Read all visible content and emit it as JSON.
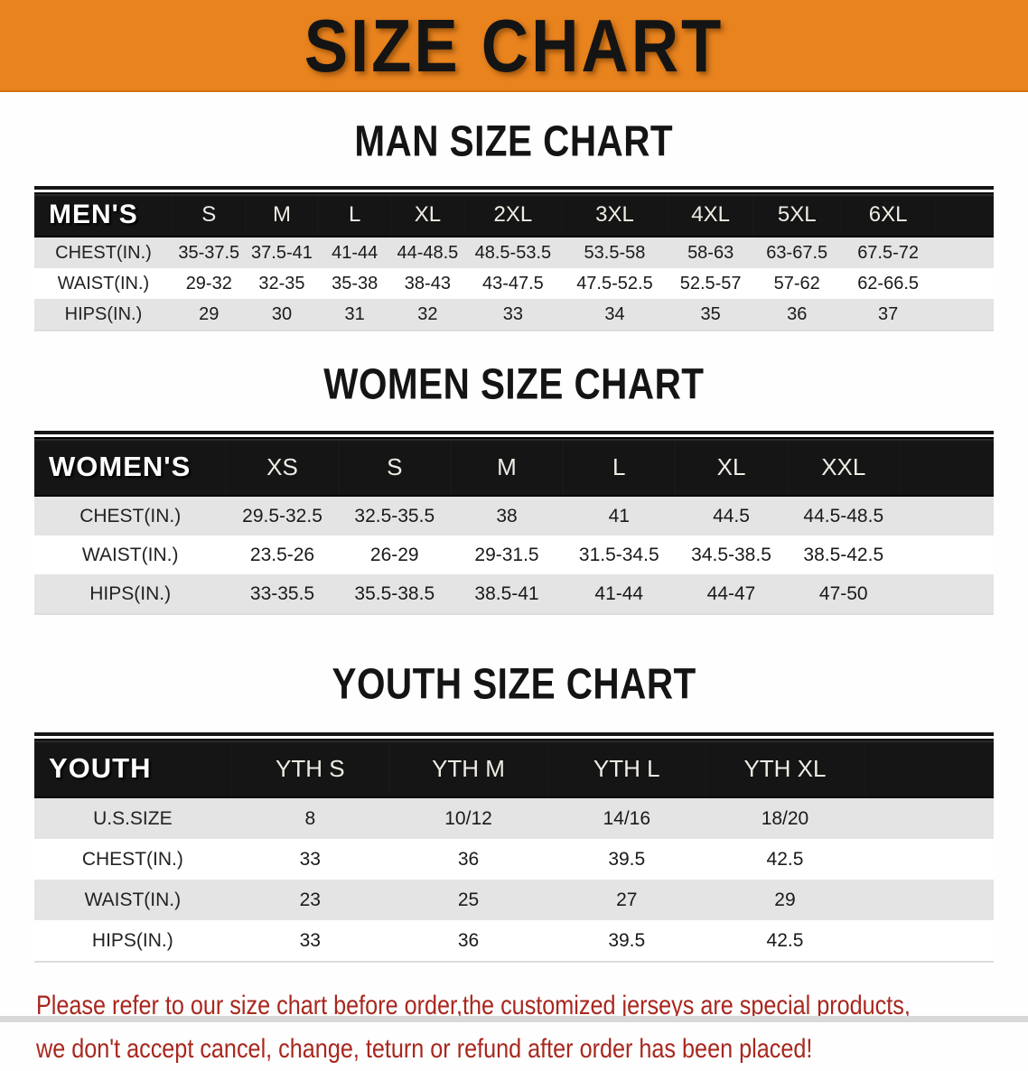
{
  "banner": {
    "title": "SIZE CHART",
    "background_color": "#E8831E",
    "text_color": "#141414"
  },
  "sections": [
    {
      "heading": "MAN SIZE CHART",
      "corner": "MEN'S",
      "columns": [
        "S",
        "M",
        "L",
        "XL",
        "2XL",
        "3XL",
        "4XL",
        "5XL",
        "6XL"
      ],
      "rows": [
        {
          "label": "CHEST(IN.)",
          "values": [
            "35-37.5",
            "37.5-41",
            "41-44",
            "44-48.5",
            "48.5-53.5",
            "53.5-58",
            "58-63",
            "63-67.5",
            "67.5-72"
          ]
        },
        {
          "label": "WAIST(IN.)",
          "values": [
            "29-32",
            "32-35",
            "35-38",
            "38-43",
            "43-47.5",
            "47.5-52.5",
            "52.5-57",
            "57-62",
            "62-66.5"
          ]
        },
        {
          "label": "HIPS(IN.)",
          "values": [
            "29",
            "30",
            "31",
            "32",
            "33",
            "34",
            "35",
            "36",
            "37"
          ]
        }
      ]
    },
    {
      "heading": "WOMEN SIZE CHART",
      "corner": "WOMEN'S",
      "columns": [
        "XS",
        "S",
        "M",
        "L",
        "XL",
        "XXL"
      ],
      "rows": [
        {
          "label": "CHEST(IN.)",
          "values": [
            "29.5-32.5",
            "32.5-35.5",
            "38",
            "41",
            "44.5",
            "44.5-48.5"
          ]
        },
        {
          "label": "WAIST(IN.)",
          "values": [
            "23.5-26",
            "26-29",
            "29-31.5",
            "31.5-34.5",
            "34.5-38.5",
            "38.5-42.5"
          ]
        },
        {
          "label": "HIPS(IN.)",
          "values": [
            "33-35.5",
            "35.5-38.5",
            "38.5-41",
            "41-44",
            "44-47",
            "47-50"
          ]
        }
      ]
    },
    {
      "heading": "YOUTH SIZE CHART",
      "corner": "YOUTH",
      "columns": [
        "YTH S",
        "YTH M",
        "YTH L",
        "YTH XL"
      ],
      "rows": [
        {
          "label": "U.S.SIZE",
          "values": [
            "8",
            "10/12",
            "14/16",
            "18/20"
          ]
        },
        {
          "label": "CHEST(IN.)",
          "values": [
            "33",
            "36",
            "39.5",
            "42.5"
          ]
        },
        {
          "label": "WAIST(IN.)",
          "values": [
            "23",
            "25",
            "27",
            "29"
          ]
        },
        {
          "label": "HIPS(IN.)",
          "values": [
            "33",
            "36",
            "39.5",
            "42.5"
          ]
        }
      ]
    }
  ],
  "disclaimer": {
    "line1": "Please refer to our size chart before order,the customized jerseys are special products,",
    "line2": "we don't accept cancel, change, teturn or refund after order has been placed!",
    "text_color": "#A8271E"
  },
  "colors": {
    "banner_orange": "#E8831E",
    "header_bar_black": "#151515",
    "row_gray": "#E4E4E4",
    "row_white": "#FFFFFF",
    "disclaimer_red": "#A8271E"
  }
}
